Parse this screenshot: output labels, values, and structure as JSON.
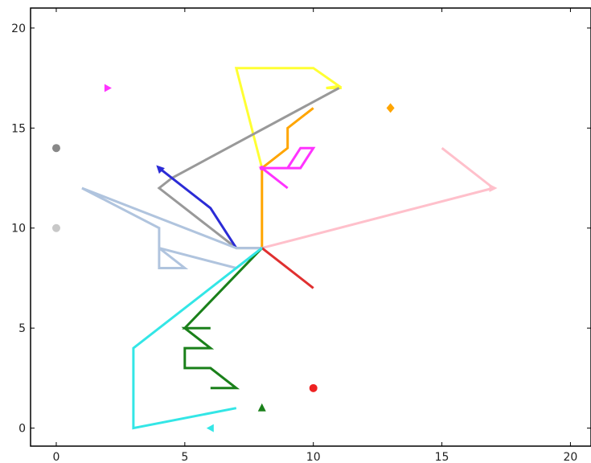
{
  "chart_data": {
    "type": "line",
    "xlim": [
      -1,
      20.8
    ],
    "ylim": [
      -0.9,
      21
    ],
    "x_ticks": [
      "0",
      "5",
      "10",
      "15",
      "20"
    ],
    "y_ticks": [
      "0",
      "5",
      "10",
      "15",
      "20"
    ],
    "grid": false,
    "frame": "box",
    "series": [
      {
        "kind": "line",
        "color": "#ffff33",
        "points": [
          [
            11.1,
            17.0
          ],
          [
            10.5,
            17.0
          ],
          [
            11.0,
            17.1
          ],
          [
            10.0,
            18.0
          ],
          [
            7.0,
            18.0
          ],
          [
            8.0,
            13.0
          ]
        ]
      },
      {
        "kind": "line",
        "color": "#999999",
        "points": [
          [
            11.0,
            17.0
          ],
          [
            4.5,
            12.5
          ],
          [
            4.0,
            12.0
          ],
          [
            7.0,
            9.0
          ],
          [
            8.0,
            9.0
          ]
        ]
      },
      {
        "kind": "line",
        "color": "#ffa500",
        "points": [
          [
            10.0,
            16.0
          ],
          [
            9.0,
            15.0
          ],
          [
            9.0,
            14.0
          ],
          [
            8.0,
            13.0
          ],
          [
            8.0,
            9.0
          ]
        ]
      },
      {
        "kind": "line",
        "color": "#ff33ff",
        "points": [
          [
            9.0,
            12.0
          ],
          [
            8.0,
            13.0
          ],
          [
            9.0,
            13.0
          ],
          [
            9.5,
            14.0
          ],
          [
            10.0,
            14.0
          ],
          [
            9.5,
            13.0
          ],
          [
            8.0,
            13.0
          ]
        ]
      },
      {
        "kind": "line",
        "color": "#2b2bd6",
        "points": [
          [
            4.0,
            13.0
          ],
          [
            6.0,
            11.0
          ],
          [
            7.0,
            9.0
          ]
        ]
      },
      {
        "kind": "line",
        "color": "#ffc0cb",
        "points": [
          [
            15.0,
            14.0
          ],
          [
            17.0,
            12.0
          ],
          [
            8.0,
            9.0
          ]
        ]
      },
      {
        "kind": "line",
        "color": "#b0c4de",
        "points": [
          [
            1.0,
            12.0
          ],
          [
            4.0,
            10.0
          ],
          [
            4.0,
            8.0
          ],
          [
            5.0,
            8.0
          ],
          [
            4.0,
            9.0
          ],
          [
            7.0,
            8.0
          ],
          [
            8.0,
            9.0
          ],
          [
            7.0,
            9.0
          ],
          [
            1.0,
            12.0
          ]
        ]
      },
      {
        "kind": "line",
        "color": "#e03030",
        "points": [
          [
            8.0,
            9.0
          ],
          [
            10.0,
            7.0
          ]
        ]
      },
      {
        "kind": "line",
        "color": "#1a801a",
        "points": [
          [
            8.0,
            9.0
          ],
          [
            5.0,
            5.0
          ],
          [
            6.0,
            5.0
          ],
          [
            5.0,
            5.0
          ],
          [
            6.0,
            4.0
          ],
          [
            5.0,
            4.0
          ],
          [
            5.0,
            3.0
          ],
          [
            6.0,
            3.0
          ],
          [
            7.0,
            2.0
          ],
          [
            6.0,
            2.0
          ]
        ]
      },
      {
        "kind": "line",
        "color": "#33e6e6",
        "points": [
          [
            8.0,
            9.0
          ],
          [
            3.0,
            4.0
          ],
          [
            3.0,
            0.0
          ],
          [
            7.0,
            1.0
          ]
        ]
      },
      {
        "kind": "marker",
        "color": "#ee2222",
        "marker": "circle",
        "point": [
          10.0,
          2.0
        ]
      },
      {
        "kind": "marker",
        "color": "#1a801a",
        "marker": "triangle-up",
        "point": [
          8.0,
          1.0
        ]
      },
      {
        "kind": "marker",
        "color": "#33e6e6",
        "marker": "triangle-left",
        "point": [
          6.0,
          0.0
        ]
      },
      {
        "kind": "marker",
        "color": "#ff33ff",
        "marker": "triangle-right",
        "point": [
          2.0,
          17.0
        ]
      },
      {
        "kind": "marker",
        "color": "#ffa500",
        "marker": "diamond",
        "point": [
          13.0,
          16.0
        ]
      },
      {
        "kind": "marker",
        "color": "#888888",
        "marker": "circle",
        "point": [
          0.0,
          14.0
        ]
      },
      {
        "kind": "marker",
        "color": "#c8c8c8",
        "marker": "circle",
        "point": [
          0.0,
          10.0
        ]
      },
      {
        "kind": "marker",
        "color": "#2b2bd6",
        "marker": "arrow-head",
        "point": [
          4.0,
          13.0
        ]
      },
      {
        "kind": "marker",
        "color": "#ffc0cb",
        "marker": "arrow-head",
        "point": [
          17.0,
          12.0
        ]
      },
      {
        "kind": "marker",
        "color": "#ff33ff",
        "marker": "dot",
        "point": [
          8.0,
          13.0
        ]
      }
    ]
  }
}
